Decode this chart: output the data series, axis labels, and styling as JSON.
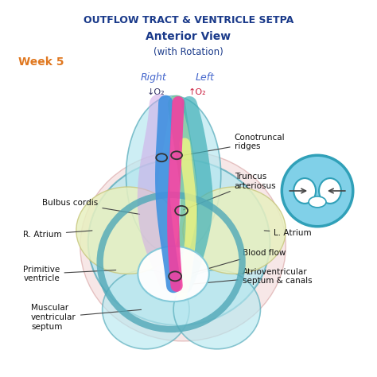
{
  "title1": "OUTFLOW TRACT & VENTRICLE SETPA",
  "title2": "Anterior View",
  "title3": "(with Rotation)",
  "week_label": "Week 5",
  "right_label": "Right",
  "left_label": "Left",
  "o2_down": "↓O₂",
  "o2_up": "↑O₂",
  "labels": {
    "conotruncal": "Conotruncal\nridges",
    "truncus": "Truncus\narteriosus",
    "bulbus": "Bulbus cordis",
    "r_atrium": "R. Atrium",
    "l_atrium": "L. Atrium",
    "primitive": "Primitive\nventricle",
    "blood_flow": "Blood flow",
    "atrioventricular": "Atrioventricular\nseptum & canals",
    "muscular": "Muscular\nventricular\nseptum"
  },
  "colors": {
    "title": "#1a3a8a",
    "week": "#e07820",
    "right_left": "#4466cc",
    "background": "#ffffff",
    "body_light": "#b8e8f0",
    "body_mid": "#80c8d8",
    "body_dark": "#50a8b8",
    "body_outline": "#c08080",
    "atrium_fill": "#e8f0c0",
    "atrium_outline": "#c8c880",
    "pink_tube": "#f040a0",
    "blue_tube": "#4090e0",
    "green_tube": "#70c090",
    "teal_tube": "#40b0b8",
    "yellow_fill": "#f8f880",
    "lavender": "#d0a8e8",
    "cross_bg": "#80d0e8",
    "cross_outline": "#30a0b8",
    "label_color": "#111111"
  }
}
